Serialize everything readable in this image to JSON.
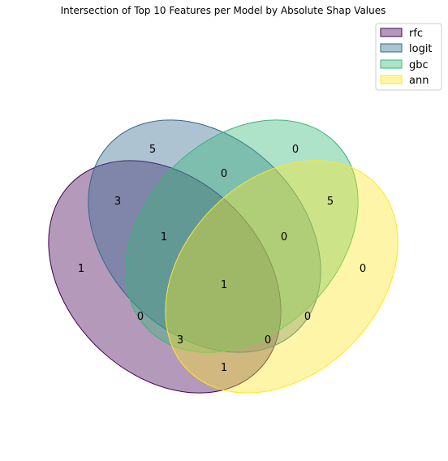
{
  "title": "Intersection of Top 10 Features per Model by Absolute Shap Values",
  "sets": [
    {
      "name": "rfc",
      "color": "#440154"
    },
    {
      "name": "logit",
      "color": "#31688e"
    },
    {
      "name": "gbc",
      "color": "#35b779"
    },
    {
      "name": "ann",
      "color": "#fde725"
    }
  ],
  "regions": [
    {
      "id": "logit-only",
      "value": "5"
    },
    {
      "id": "gbc-only",
      "value": "0"
    },
    {
      "id": "logit-gbc",
      "value": "0"
    },
    {
      "id": "rfc-logit",
      "value": "3"
    },
    {
      "id": "gbc-ann",
      "value": "5"
    },
    {
      "id": "rfc-logit-gbc",
      "value": "1"
    },
    {
      "id": "logit-gbc-ann",
      "value": "0"
    },
    {
      "id": "rfc-only",
      "value": "1"
    },
    {
      "id": "ann-only",
      "value": "0"
    },
    {
      "id": "all",
      "value": "1"
    },
    {
      "id": "rfc-gbc",
      "value": "0"
    },
    {
      "id": "logit-ann",
      "value": "0"
    },
    {
      "id": "rfc-gbc-ann",
      "value": "3"
    },
    {
      "id": "rfc-logit-ann",
      "value": "0"
    },
    {
      "id": "rfc-ann",
      "value": "1"
    }
  ]
}
